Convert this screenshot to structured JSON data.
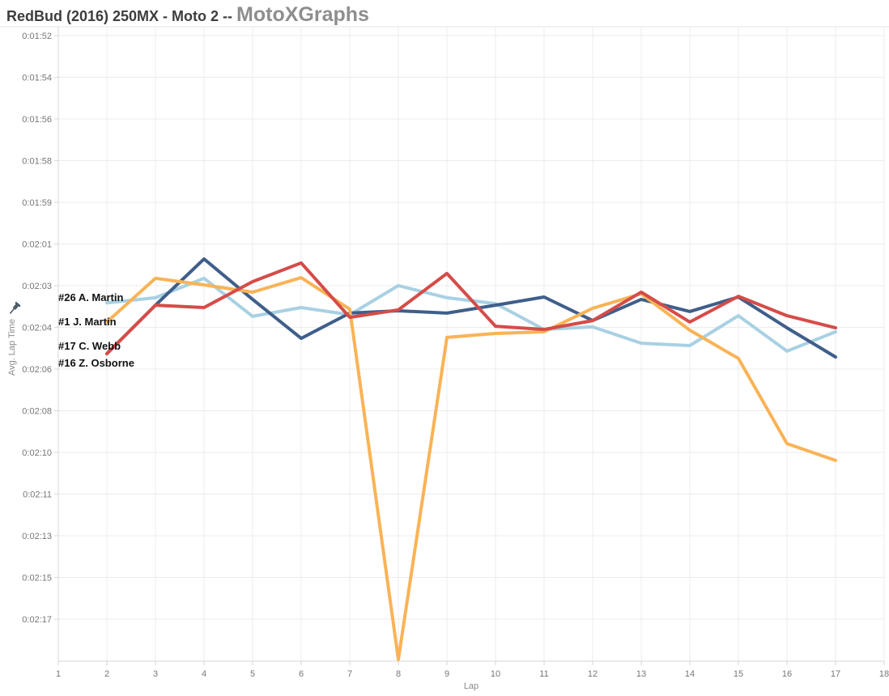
{
  "header": {
    "title_event": "RedBud (2016) 250MX - Moto 2 -- ",
    "title_brand": "MotoXGraphs"
  },
  "chart_data": {
    "type": "line",
    "title": "RedBud (2016) 250MX - Moto 2 -- MotoXGraphs",
    "xlabel": "Lap",
    "ylabel": "Avg. Lap Time",
    "grid": true,
    "legend_position": "inline-left-of-lines",
    "x_axis_ticks": [
      1,
      2,
      3,
      4,
      5,
      6,
      7,
      8,
      9,
      10,
      11,
      12,
      13,
      14,
      15,
      16,
      17,
      18
    ],
    "x": [
      2,
      3,
      4,
      5,
      6,
      7,
      8,
      9,
      10,
      11,
      12,
      13,
      14,
      15,
      16,
      17
    ],
    "y_tick_labels": [
      "0:01:52",
      "0:01:54",
      "0:01:56",
      "0:01:58",
      "0:01:59",
      "0:02:01",
      "0:02:03",
      "0:02:04",
      "0:02:06",
      "0:02:08",
      "0:02:10",
      "0:02:11",
      "0:02:13",
      "0:02:15",
      "0:02:17"
    ],
    "y_axis_range_seconds": [
      112,
      137
    ],
    "y_axis_note": "times in seconds; 112 s = 0:01:52 (top), 137 s = 0:02:17 (bottom), axis reversed (faster laps higher)",
    "series": [
      {
        "label": "#26 A. Martin",
        "color": "#a8d1e3",
        "values_seconds": [
          123.45,
          123.23,
          122.4,
          124.03,
          123.65,
          123.96,
          122.71,
          123.23,
          123.48,
          124.59,
          124.48,
          125.18,
          125.28,
          124.0,
          125.52,
          124.69
        ]
      },
      {
        "label": "#1 J. Martin",
        "color": "#f9b356",
        "values_seconds": [
          124.27,
          122.4,
          122.68,
          122.99,
          122.37,
          123.72,
          138.73,
          124.93,
          124.76,
          124.69,
          123.68,
          123.06,
          124.62,
          125.83,
          129.48,
          130.2
        ]
      },
      {
        "label": "#17 C. Webb",
        "color": "#d54c48",
        "values_seconds": [
          125.63,
          123.55,
          123.65,
          122.54,
          121.74,
          124.07,
          123.75,
          122.19,
          124.45,
          124.59,
          124.21,
          122.99,
          124.27,
          123.17,
          124.0,
          124.52
        ]
      },
      {
        "label": "#16 Z. Osborne",
        "color": "#3f5e8a",
        "values_seconds": [
          125.63,
          123.55,
          121.57,
          123.3,
          124.97,
          123.89,
          123.79,
          123.89,
          123.55,
          123.2,
          124.21,
          123.3,
          123.82,
          123.2,
          124.52,
          125.77
        ]
      }
    ]
  }
}
